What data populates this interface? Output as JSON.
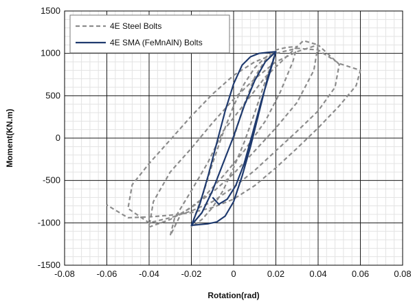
{
  "chart_data": {
    "type": "line",
    "title": "",
    "xlabel": "Rotation(rad)",
    "ylabel": "Moment(KN.m)",
    "xlim": [
      -0.08,
      0.08
    ],
    "ylim": [
      -1500,
      1500
    ],
    "x_ticks": [
      "-0.08",
      "-0.06",
      "-0.04",
      "-0.02",
      "0",
      "0.02",
      "0.04",
      "0.06",
      "0.08"
    ],
    "y_ticks": [
      "-1500",
      "-1000",
      "-500",
      "0",
      "500",
      "1000",
      "1500"
    ],
    "grid": true,
    "minor_grid": true,
    "legend_position": "top-left",
    "series": [
      {
        "name": "4E Steel Bolts",
        "color": "#8c8c8c",
        "style": "dashed",
        "x": [
          0,
          0.005,
          0.01,
          0.015,
          0.02,
          0.018,
          0.014,
          0.01,
          0.005,
          0,
          -0.005,
          -0.01,
          -0.015,
          -0.02,
          -0.018,
          -0.014,
          -0.01,
          -0.005,
          0,
          0.005,
          0.01,
          0.015,
          0.02,
          0.025,
          0.03,
          0.028,
          0.022,
          0.015,
          0.005,
          -0.005,
          -0.015,
          -0.025,
          -0.03,
          -0.028,
          -0.02,
          -0.012,
          -0.005,
          0.005,
          0.015,
          0.025,
          0.033,
          0.04,
          0.038,
          0.03,
          0.02,
          0.01,
          0,
          -0.01,
          -0.02,
          -0.03,
          -0.04,
          -0.038,
          -0.03,
          -0.02,
          -0.01,
          0,
          0.01,
          0.02,
          0.03,
          0.04,
          0.05,
          0.048,
          0.04,
          0.03,
          0.02,
          0.01,
          0,
          -0.01,
          -0.02,
          -0.03,
          -0.04,
          -0.05,
          -0.048,
          -0.04,
          -0.03,
          -0.02,
          -0.01,
          0,
          0.01,
          0.02,
          0.03,
          0.04,
          0.05,
          0.06,
          0.058,
          0.05,
          0.04,
          0.03,
          0.02,
          0.01,
          0,
          -0.01,
          -0.02,
          -0.03,
          -0.04,
          -0.05,
          -0.06
        ],
        "y": [
          0,
          400,
          720,
          920,
          1020,
          880,
          600,
          300,
          -50,
          -350,
          -620,
          -820,
          -960,
          -1050,
          -900,
          -620,
          -300,
          60,
          380,
          640,
          830,
          950,
          1040,
          1070,
          1080,
          900,
          540,
          200,
          -150,
          -450,
          -720,
          -900,
          -1150,
          -950,
          -620,
          -280,
          80,
          400,
          720,
          960,
          1150,
          1100,
          800,
          420,
          120,
          -150,
          -420,
          -640,
          -820,
          -960,
          -1050,
          -750,
          -400,
          -120,
          180,
          460,
          700,
          900,
          1020,
          1100,
          870,
          600,
          320,
          80,
          -150,
          -380,
          -580,
          -750,
          -860,
          -940,
          -1000,
          -830,
          -550,
          -300,
          -20,
          260,
          520,
          740,
          900,
          1000,
          1060,
          1040,
          880,
          800,
          620,
          380,
          120,
          -120,
          -350,
          -560,
          -720,
          -820,
          -880,
          -910,
          -930,
          -940,
          -790
        ]
      },
      {
        "name": "4E SMA (FeMnAlN) Bolts",
        "color": "#1f3a6e",
        "style": "solid",
        "x": [
          -0.02,
          -0.015,
          -0.01,
          -0.005,
          0,
          0.005,
          0.01,
          0.015,
          0.02,
          0.016,
          0.012,
          0.008,
          0.004,
          0,
          -0.004,
          -0.008,
          -0.012,
          -0.016,
          -0.02,
          -0.016,
          -0.012,
          -0.008,
          -0.004,
          0,
          0.004,
          0.008,
          0.012,
          0.016,
          0.02,
          0.017,
          0.013,
          0.009,
          0.005,
          0.001,
          -0.003,
          -0.007,
          -0.01
        ],
        "y": [
          -1030,
          -880,
          -620,
          -300,
          20,
          380,
          680,
          900,
          1020,
          700,
          300,
          -100,
          -450,
          -750,
          -920,
          -990,
          -1010,
          -1020,
          -1030,
          -780,
          -440,
          -60,
          320,
          640,
          860,
          960,
          1000,
          1010,
          1020,
          760,
          430,
          60,
          -300,
          -560,
          -720,
          -780,
          -700
        ]
      }
    ]
  }
}
